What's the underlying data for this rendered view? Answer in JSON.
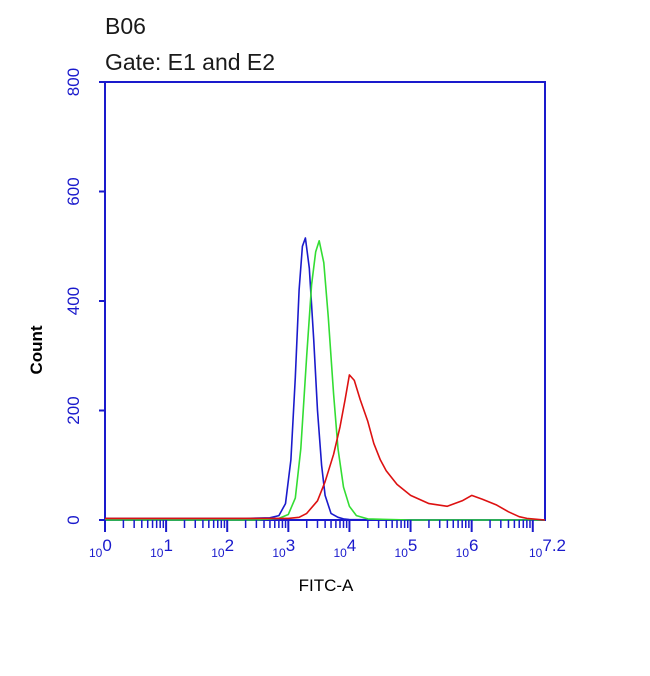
{
  "header": {
    "sample": "B06",
    "gate": "Gate: E1 and E2"
  },
  "chart_data": {
    "type": "line",
    "title": "B06",
    "subtitle": "Gate: E1 and E2",
    "xlabel": "FITC-A",
    "ylabel": "Count",
    "xscale": "log10",
    "xlim": [
      1,
      15848932
    ],
    "ylim": [
      0,
      800
    ],
    "yticks": [
      "0",
      "200",
      "400",
      "600",
      "800"
    ],
    "xticks": [
      {
        "base": "10",
        "exp": "0"
      },
      {
        "base": "10",
        "exp": "1"
      },
      {
        "base": "10",
        "exp": "2"
      },
      {
        "base": "10",
        "exp": "3"
      },
      {
        "base": "10",
        "exp": "4"
      },
      {
        "base": "10",
        "exp": "5"
      },
      {
        "base": "10",
        "exp": "6"
      },
      {
        "base": "10",
        "exp": "7.2"
      }
    ],
    "grid": false,
    "legend": "none",
    "series": [
      {
        "color": "#1a1acc",
        "x": [
          1,
          200,
          500,
          700,
          900,
          1100,
          1300,
          1500,
          1700,
          1900,
          2200,
          2600,
          3000,
          3500,
          4000,
          5000,
          6500,
          8000,
          10000,
          100000,
          15848932
        ],
        "y": [
          3,
          3,
          4,
          8,
          30,
          110,
          260,
          420,
          500,
          515,
          460,
          330,
          200,
          100,
          45,
          12,
          5,
          2,
          1,
          0,
          0
        ]
      },
      {
        "color": "#33dd33",
        "x": [
          1,
          300,
          700,
          1000,
          1300,
          1600,
          2000,
          2400,
          2800,
          3200,
          3800,
          4500,
          5500,
          6500,
          8000,
          10000,
          13000,
          20000,
          100000,
          15848932
        ],
        "y": [
          0,
          0,
          3,
          10,
          40,
          130,
          300,
          430,
          490,
          510,
          470,
          370,
          230,
          130,
          60,
          25,
          8,
          2,
          0,
          0
        ]
      },
      {
        "color": "#dd1111",
        "x": [
          1,
          1000,
          1500,
          2000,
          3000,
          4000,
          5500,
          7000,
          8500,
          10000,
          12000,
          15000,
          20000,
          25000,
          32000,
          40000,
          60000,
          100000,
          200000,
          400000,
          700000,
          1000000,
          1500000,
          2500000,
          4000000,
          6000000,
          8000000,
          15848932
        ],
        "y": [
          3,
          3,
          5,
          12,
          35,
          70,
          120,
          170,
          220,
          265,
          255,
          220,
          180,
          140,
          110,
          90,
          65,
          45,
          30,
          25,
          35,
          45,
          38,
          28,
          15,
          6,
          3,
          0
        ]
      }
    ]
  }
}
